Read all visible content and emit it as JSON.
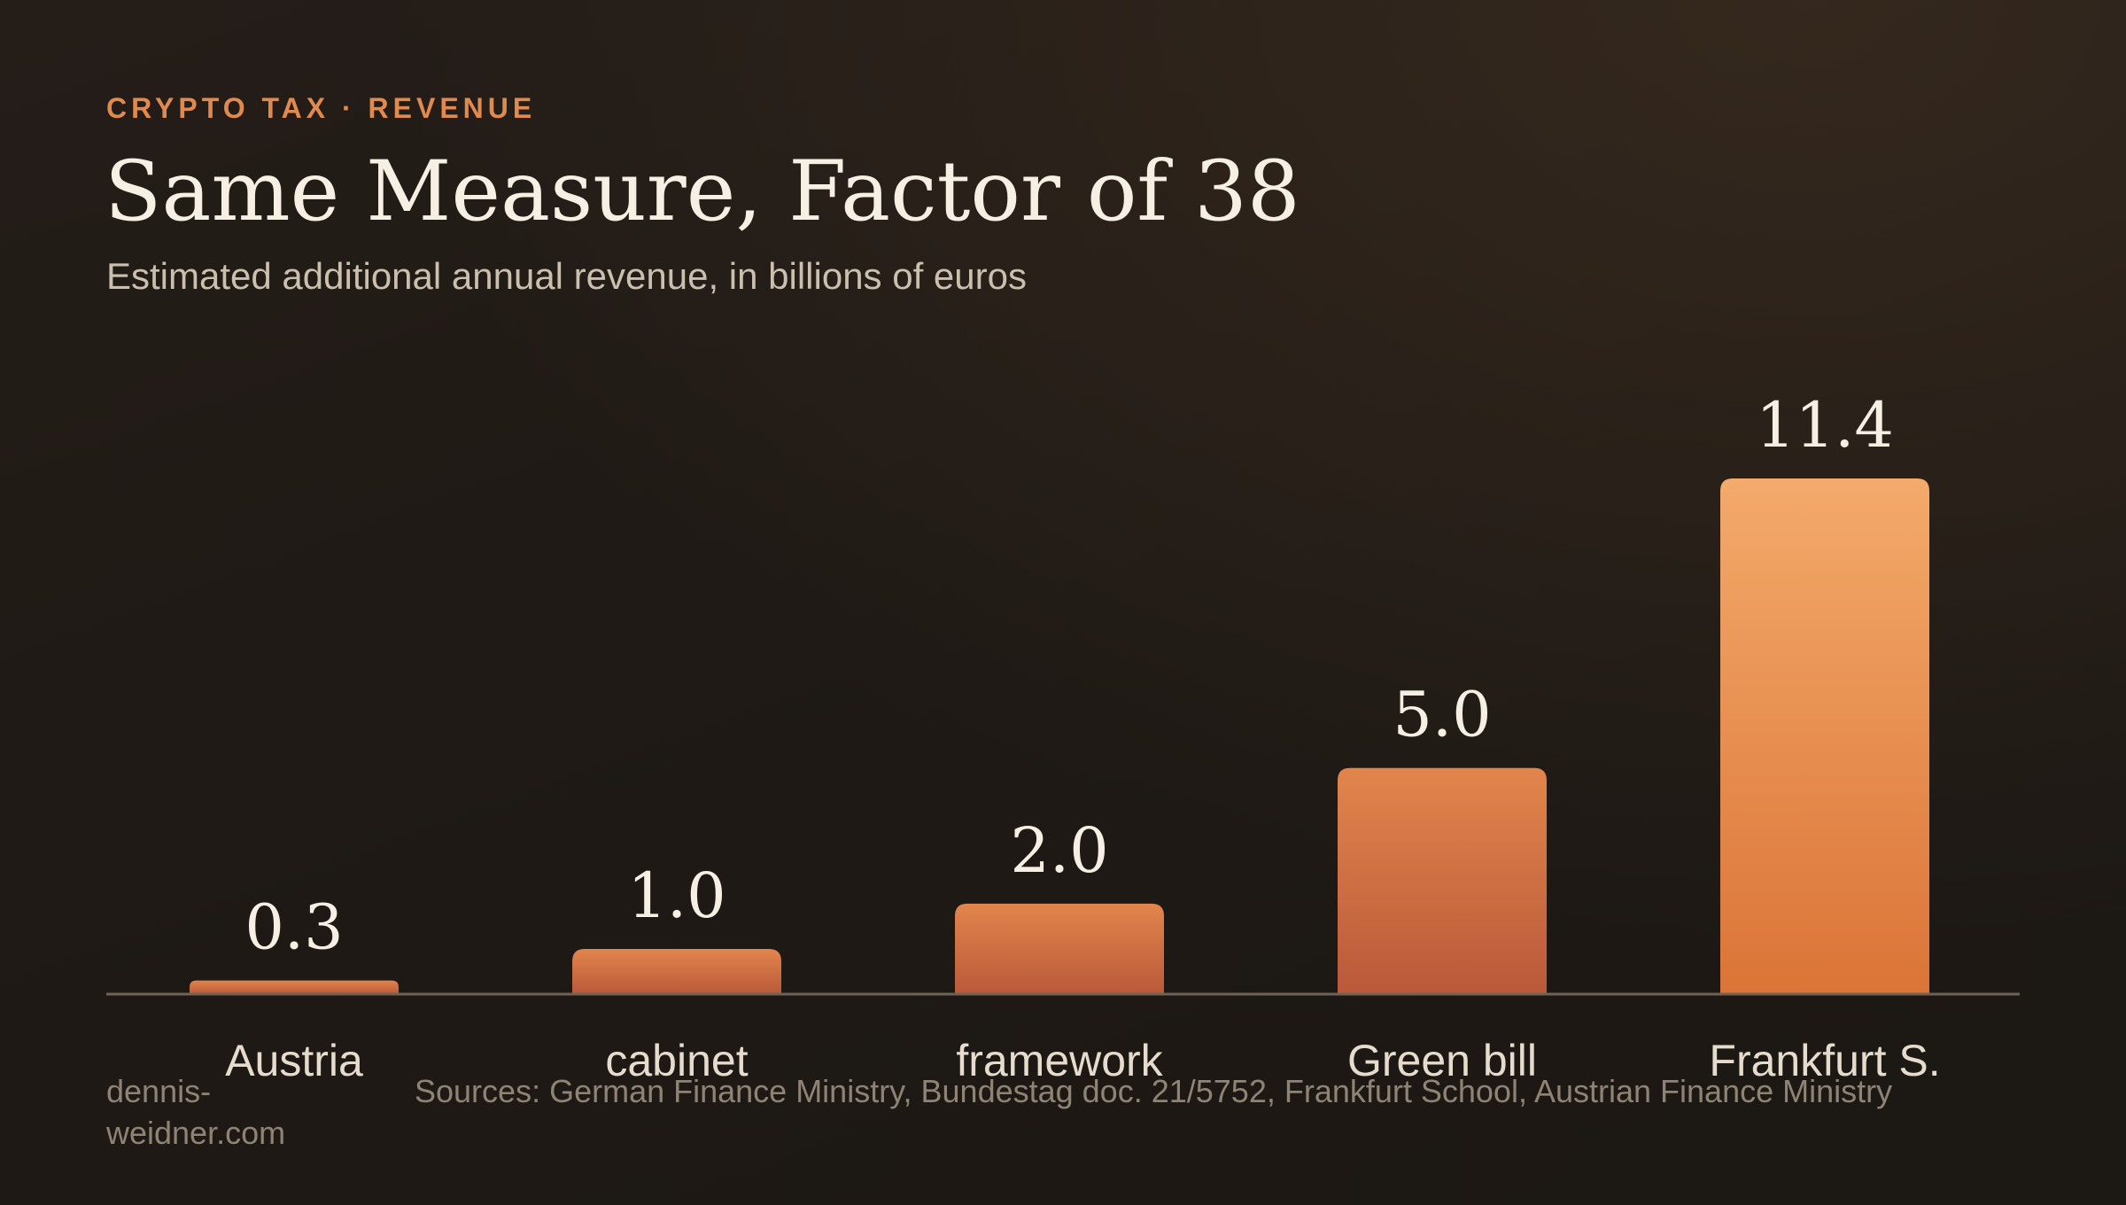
{
  "header": {
    "eyebrow": "CRYPTO TAX · REVENUE",
    "title": "Same Measure, Factor of 38",
    "subtitle": "Estimated additional annual revenue, in billions of euros"
  },
  "footer": {
    "credit": "dennis-weidner.com",
    "sources": "Sources: German Finance Ministry, Bundestag doc. 21/5752, Frankfurt School, Austrian Finance Ministry"
  },
  "colors": {
    "accent": "#e08a4e",
    "bar_top_highlight": "#f3a96a",
    "bar_bottom": "#b95a34",
    "baseline": "#6e6455"
  },
  "chart_data": {
    "type": "bar",
    "title": "Same Measure, Factor of 38",
    "subtitle": "Estimated additional annual revenue, in billions of euros",
    "categories": [
      "Austria",
      "cabinet",
      "framework",
      "Green bill",
      "Frankfurt S."
    ],
    "values": [
      0.3,
      1.0,
      2.0,
      5.0,
      11.4
    ],
    "value_labels": [
      "0.3",
      "1.0",
      "2.0",
      "5.0",
      "11.4"
    ],
    "xlabel": "",
    "ylabel": "",
    "ylim": [
      0,
      11.4
    ],
    "grid": false,
    "legend": "none",
    "highlight_category": "Frankfurt S."
  }
}
